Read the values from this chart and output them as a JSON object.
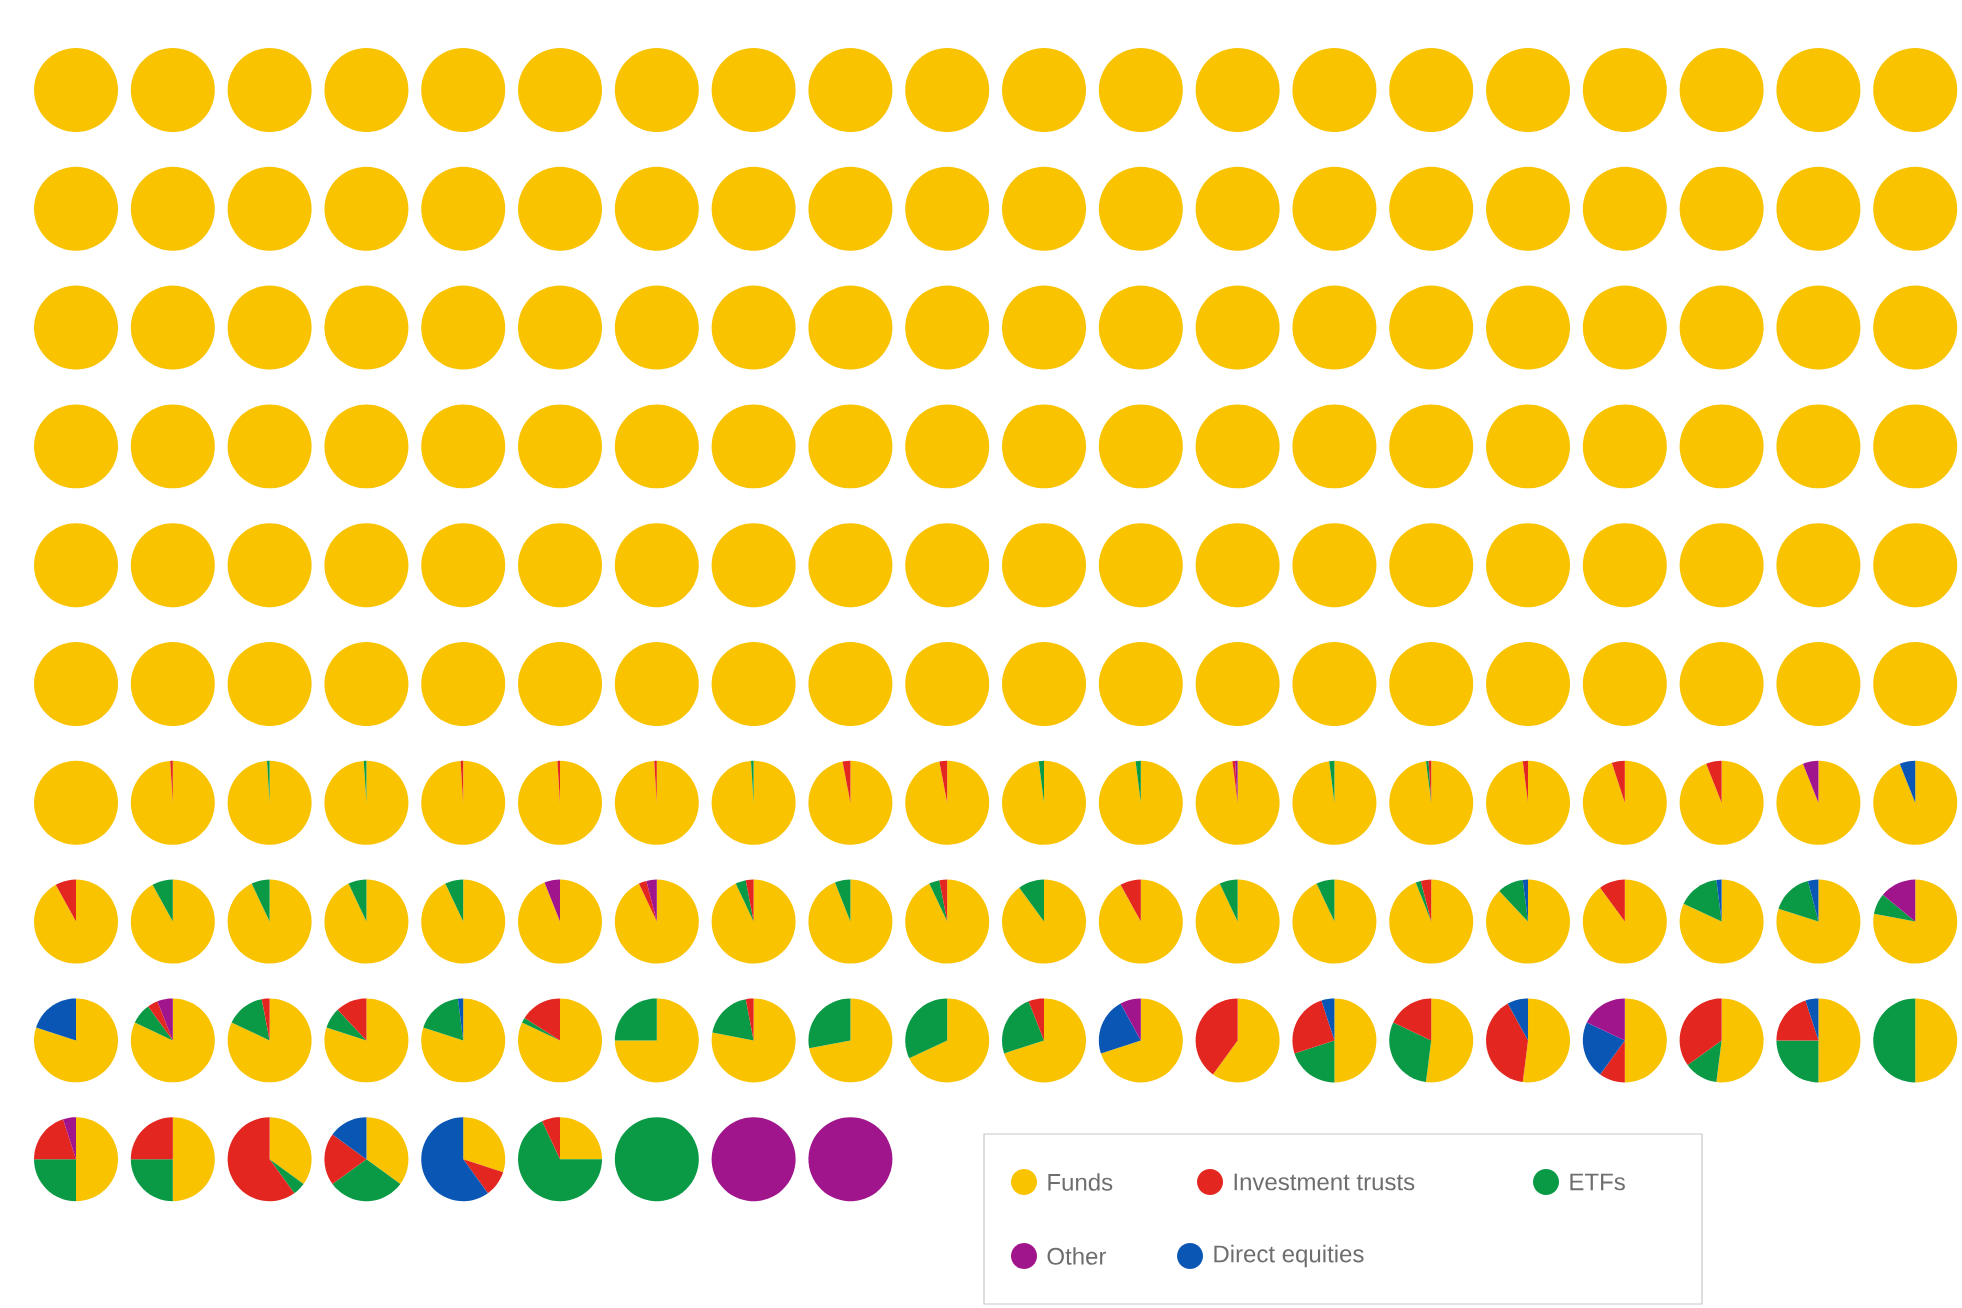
{
  "chart_data": {
    "type": "pie",
    "categories": [
      "Funds",
      "Investment trusts",
      "ETFs",
      "Other",
      "Direct equities"
    ],
    "colors": [
      "#f9c300",
      "#e3261f",
      "#0a9a46",
      "#a0148c",
      "#0a56b4"
    ],
    "legend": "bottom right",
    "series": [
      {
        "values": [
          100,
          0,
          0,
          0,
          0
        ]
      },
      {
        "values": [
          100,
          0,
          0,
          0,
          0
        ]
      },
      {
        "values": [
          100,
          0,
          0,
          0,
          0
        ]
      },
      {
        "values": [
          100,
          0,
          0,
          0,
          0
        ]
      },
      {
        "values": [
          100,
          0,
          0,
          0,
          0
        ]
      },
      {
        "values": [
          100,
          0,
          0,
          0,
          0
        ]
      },
      {
        "values": [
          100,
          0,
          0,
          0,
          0
        ]
      },
      {
        "values": [
          100,
          0,
          0,
          0,
          0
        ]
      },
      {
        "values": [
          100,
          0,
          0,
          0,
          0
        ]
      },
      {
        "values": [
          100,
          0,
          0,
          0,
          0
        ]
      },
      {
        "values": [
          100,
          0,
          0,
          0,
          0
        ]
      },
      {
        "values": [
          100,
          0,
          0,
          0,
          0
        ]
      },
      {
        "values": [
          100,
          0,
          0,
          0,
          0
        ]
      },
      {
        "values": [
          100,
          0,
          0,
          0,
          0
        ]
      },
      {
        "values": [
          100,
          0,
          0,
          0,
          0
        ]
      },
      {
        "values": [
          100,
          0,
          0,
          0,
          0
        ]
      },
      {
        "values": [
          100,
          0,
          0,
          0,
          0
        ]
      },
      {
        "values": [
          100,
          0,
          0,
          0,
          0
        ]
      },
      {
        "values": [
          100,
          0,
          0,
          0,
          0
        ]
      },
      {
        "values": [
          100,
          0,
          0,
          0,
          0
        ]
      },
      {
        "values": [
          100,
          0,
          0,
          0,
          0
        ]
      },
      {
        "values": [
          100,
          0,
          0,
          0,
          0
        ]
      },
      {
        "values": [
          100,
          0,
          0,
          0,
          0
        ]
      },
      {
        "values": [
          100,
          0,
          0,
          0,
          0
        ]
      },
      {
        "values": [
          100,
          0,
          0,
          0,
          0
        ]
      },
      {
        "values": [
          100,
          0,
          0,
          0,
          0
        ]
      },
      {
        "values": [
          100,
          0,
          0,
          0,
          0
        ]
      },
      {
        "values": [
          100,
          0,
          0,
          0,
          0
        ]
      },
      {
        "values": [
          100,
          0,
          0,
          0,
          0
        ]
      },
      {
        "values": [
          100,
          0,
          0,
          0,
          0
        ]
      },
      {
        "values": [
          100,
          0,
          0,
          0,
          0
        ]
      },
      {
        "values": [
          100,
          0,
          0,
          0,
          0
        ]
      },
      {
        "values": [
          100,
          0,
          0,
          0,
          0
        ]
      },
      {
        "values": [
          100,
          0,
          0,
          0,
          0
        ]
      },
      {
        "values": [
          100,
          0,
          0,
          0,
          0
        ]
      },
      {
        "values": [
          100,
          0,
          0,
          0,
          0
        ]
      },
      {
        "values": [
          100,
          0,
          0,
          0,
          0
        ]
      },
      {
        "values": [
          100,
          0,
          0,
          0,
          0
        ]
      },
      {
        "values": [
          100,
          0,
          0,
          0,
          0
        ]
      },
      {
        "values": [
          100,
          0,
          0,
          0,
          0
        ]
      },
      {
        "values": [
          100,
          0,
          0,
          0,
          0
        ]
      },
      {
        "values": [
          100,
          0,
          0,
          0,
          0
        ]
      },
      {
        "values": [
          100,
          0,
          0,
          0,
          0
        ]
      },
      {
        "values": [
          100,
          0,
          0,
          0,
          0
        ]
      },
      {
        "values": [
          100,
          0,
          0,
          0,
          0
        ]
      },
      {
        "values": [
          100,
          0,
          0,
          0,
          0
        ]
      },
      {
        "values": [
          100,
          0,
          0,
          0,
          0
        ]
      },
      {
        "values": [
          100,
          0,
          0,
          0,
          0
        ]
      },
      {
        "values": [
          100,
          0,
          0,
          0,
          0
        ]
      },
      {
        "values": [
          100,
          0,
          0,
          0,
          0
        ]
      },
      {
        "values": [
          100,
          0,
          0,
          0,
          0
        ]
      },
      {
        "values": [
          100,
          0,
          0,
          0,
          0
        ]
      },
      {
        "values": [
          100,
          0,
          0,
          0,
          0
        ]
      },
      {
        "values": [
          100,
          0,
          0,
          0,
          0
        ]
      },
      {
        "values": [
          100,
          0,
          0,
          0,
          0
        ]
      },
      {
        "values": [
          100,
          0,
          0,
          0,
          0
        ]
      },
      {
        "values": [
          100,
          0,
          0,
          0,
          0
        ]
      },
      {
        "values": [
          100,
          0,
          0,
          0,
          0
        ]
      },
      {
        "values": [
          100,
          0,
          0,
          0,
          0
        ]
      },
      {
        "values": [
          100,
          0,
          0,
          0,
          0
        ]
      },
      {
        "values": [
          100,
          0,
          0,
          0,
          0
        ]
      },
      {
        "values": [
          100,
          0,
          0,
          0,
          0
        ]
      },
      {
        "values": [
          100,
          0,
          0,
          0,
          0
        ]
      },
      {
        "values": [
          100,
          0,
          0,
          0,
          0
        ]
      },
      {
        "values": [
          100,
          0,
          0,
          0,
          0
        ]
      },
      {
        "values": [
          100,
          0,
          0,
          0,
          0
        ]
      },
      {
        "values": [
          100,
          0,
          0,
          0,
          0
        ]
      },
      {
        "values": [
          100,
          0,
          0,
          0,
          0
        ]
      },
      {
        "values": [
          100,
          0,
          0,
          0,
          0
        ]
      },
      {
        "values": [
          100,
          0,
          0,
          0,
          0
        ]
      },
      {
        "values": [
          100,
          0,
          0,
          0,
          0
        ]
      },
      {
        "values": [
          100,
          0,
          0,
          0,
          0
        ]
      },
      {
        "values": [
          100,
          0,
          0,
          0,
          0
        ]
      },
      {
        "values": [
          100,
          0,
          0,
          0,
          0
        ]
      },
      {
        "values": [
          100,
          0,
          0,
          0,
          0
        ]
      },
      {
        "values": [
          100,
          0,
          0,
          0,
          0
        ]
      },
      {
        "values": [
          100,
          0,
          0,
          0,
          0
        ]
      },
      {
        "values": [
          100,
          0,
          0,
          0,
          0
        ]
      },
      {
        "values": [
          100,
          0,
          0,
          0,
          0
        ]
      },
      {
        "values": [
          100,
          0,
          0,
          0,
          0
        ]
      },
      {
        "values": [
          100,
          0,
          0,
          0,
          0
        ]
      },
      {
        "values": [
          100,
          0,
          0,
          0,
          0
        ]
      },
      {
        "values": [
          100,
          0,
          0,
          0,
          0
        ]
      },
      {
        "values": [
          100,
          0,
          0,
          0,
          0
        ]
      },
      {
        "values": [
          100,
          0,
          0,
          0,
          0
        ]
      },
      {
        "values": [
          100,
          0,
          0,
          0,
          0
        ]
      },
      {
        "values": [
          100,
          0,
          0,
          0,
          0
        ]
      },
      {
        "values": [
          100,
          0,
          0,
          0,
          0
        ]
      },
      {
        "values": [
          100,
          0,
          0,
          0,
          0
        ]
      },
      {
        "values": [
          100,
          0,
          0,
          0,
          0
        ]
      },
      {
        "values": [
          100,
          0,
          0,
          0,
          0
        ]
      },
      {
        "values": [
          100,
          0,
          0,
          0,
          0
        ]
      },
      {
        "values": [
          100,
          0,
          0,
          0,
          0
        ]
      },
      {
        "values": [
          100,
          0,
          0,
          0,
          0
        ]
      },
      {
        "values": [
          100,
          0,
          0,
          0,
          0
        ]
      },
      {
        "values": [
          100,
          0,
          0,
          0,
          0
        ]
      },
      {
        "values": [
          100,
          0,
          0,
          0,
          0
        ]
      },
      {
        "values": [
          100,
          0,
          0,
          0,
          0
        ]
      },
      {
        "values": [
          100,
          0,
          0,
          0,
          0
        ]
      },
      {
        "values": [
          100,
          0,
          0,
          0,
          0
        ]
      },
      {
        "values": [
          100,
          0,
          0,
          0,
          0
        ]
      },
      {
        "values": [
          100,
          0,
          0,
          0,
          0
        ]
      },
      {
        "values": [
          100,
          0,
          0,
          0,
          0
        ]
      },
      {
        "values": [
          100,
          0,
          0,
          0,
          0
        ]
      },
      {
        "values": [
          100,
          0,
          0,
          0,
          0
        ]
      },
      {
        "values": [
          100,
          0,
          0,
          0,
          0
        ]
      },
      {
        "values": [
          100,
          0,
          0,
          0,
          0
        ]
      },
      {
        "values": [
          100,
          0,
          0,
          0,
          0
        ]
      },
      {
        "values": [
          100,
          0,
          0,
          0,
          0
        ]
      },
      {
        "values": [
          100,
          0,
          0,
          0,
          0
        ]
      },
      {
        "values": [
          100,
          0,
          0,
          0,
          0
        ]
      },
      {
        "values": [
          100,
          0,
          0,
          0,
          0
        ]
      },
      {
        "values": [
          100,
          0,
          0,
          0,
          0
        ]
      },
      {
        "values": [
          100,
          0,
          0,
          0,
          0
        ]
      },
      {
        "values": [
          100,
          0,
          0,
          0,
          0
        ]
      },
      {
        "values": [
          100,
          0,
          0,
          0,
          0
        ]
      },
      {
        "values": [
          100,
          0,
          0,
          0,
          0
        ]
      },
      {
        "values": [
          100,
          0,
          0,
          0,
          0
        ]
      },
      {
        "values": [
          100,
          0,
          0,
          0,
          0
        ]
      },
      {
        "values": [
          100,
          0,
          0,
          0,
          0
        ]
      },
      {
        "values": [
          100,
          0,
          0,
          0,
          0
        ]
      },
      {
        "values": [
          99,
          1,
          0,
          0,
          0
        ]
      },
      {
        "values": [
          99,
          0,
          1,
          0,
          0
        ]
      },
      {
        "values": [
          99,
          0,
          1,
          0,
          0
        ]
      },
      {
        "values": [
          99,
          1,
          0,
          0,
          0
        ]
      },
      {
        "values": [
          99,
          1,
          0,
          0,
          0
        ]
      },
      {
        "values": [
          99,
          1,
          0,
          0,
          0
        ]
      },
      {
        "values": [
          99,
          0,
          1,
          0,
          0
        ]
      },
      {
        "values": [
          97,
          3,
          0,
          0,
          0
        ]
      },
      {
        "values": [
          97,
          3,
          0,
          0,
          0
        ]
      },
      {
        "values": [
          98,
          0,
          2,
          0,
          0
        ]
      },
      {
        "values": [
          98,
          0,
          2,
          0,
          0
        ]
      },
      {
        "values": [
          98,
          1,
          0,
          1,
          0
        ]
      },
      {
        "values": [
          98,
          0,
          2,
          0,
          0
        ]
      },
      {
        "values": [
          98,
          1,
          1,
          0,
          0
        ]
      },
      {
        "values": [
          98,
          2,
          0,
          0,
          0
        ]
      },
      {
        "values": [
          95,
          5,
          0,
          0,
          0
        ]
      },
      {
        "values": [
          94,
          6,
          0,
          0,
          0
        ]
      },
      {
        "values": [
          94,
          0,
          0,
          6,
          0
        ]
      },
      {
        "values": [
          94,
          0,
          0,
          0,
          6
        ]
      },
      {
        "values": [
          92,
          8,
          0,
          0,
          0
        ]
      },
      {
        "values": [
          92,
          0,
          8,
          0,
          0
        ]
      },
      {
        "values": [
          93,
          0,
          7,
          0,
          0
        ]
      },
      {
        "values": [
          93,
          0,
          7,
          0,
          0
        ]
      },
      {
        "values": [
          93,
          0,
          7,
          0,
          0
        ]
      },
      {
        "values": [
          94,
          0,
          0,
          6,
          0
        ]
      },
      {
        "values": [
          93,
          3,
          0,
          4,
          0
        ]
      },
      {
        "values": [
          93,
          3,
          4,
          0,
          0
        ]
      },
      {
        "values": [
          94,
          0,
          6,
          0,
          0
        ]
      },
      {
        "values": [
          93,
          3,
          4,
          0,
          0
        ]
      },
      {
        "values": [
          90,
          0,
          10,
          0,
          0
        ]
      },
      {
        "values": [
          92,
          8,
          0,
          0,
          0
        ]
      },
      {
        "values": [
          93,
          0,
          7,
          0,
          0
        ]
      },
      {
        "values": [
          93,
          0,
          7,
          0,
          0
        ]
      },
      {
        "values": [
          94,
          4,
          2,
          0,
          0
        ]
      },
      {
        "values": [
          88,
          0,
          10,
          0,
          2
        ]
      },
      {
        "values": [
          90,
          10,
          0,
          0,
          0
        ]
      },
      {
        "values": [
          82,
          0,
          16,
          0,
          2
        ]
      },
      {
        "values": [
          80,
          0,
          16,
          0,
          4
        ]
      },
      {
        "values": [
          78,
          0,
          8,
          14,
          0
        ]
      },
      {
        "values": [
          80,
          0,
          0,
          0,
          20
        ]
      },
      {
        "values": [
          82,
          4,
          8,
          6,
          0
        ]
      },
      {
        "values": [
          82,
          3,
          15,
          0,
          0
        ]
      },
      {
        "values": [
          80,
          12,
          8,
          0,
          0
        ]
      },
      {
        "values": [
          80,
          0,
          18,
          0,
          2
        ]
      },
      {
        "values": [
          82,
          16,
          2,
          0,
          0
        ]
      },
      {
        "values": [
          75,
          0,
          25,
          0,
          0
        ]
      },
      {
        "values": [
          78,
          3,
          19,
          0,
          0
        ]
      },
      {
        "values": [
          72,
          0,
          28,
          0,
          0
        ]
      },
      {
        "values": [
          68,
          0,
          32,
          0,
          0
        ]
      },
      {
        "values": [
          70,
          6,
          24,
          0,
          0
        ]
      },
      {
        "values": [
          70,
          0,
          0,
          8,
          22
        ]
      },
      {
        "values": [
          60,
          40,
          0,
          0,
          0
        ]
      },
      {
        "values": [
          50,
          25,
          20,
          0,
          5
        ]
      },
      {
        "values": [
          52,
          18,
          30,
          0,
          0
        ]
      },
      {
        "values": [
          52,
          40,
          0,
          0,
          8
        ]
      },
      {
        "values": [
          50,
          10,
          0,
          18,
          22
        ]
      },
      {
        "values": [
          52,
          35,
          13,
          0,
          0
        ]
      },
      {
        "values": [
          50,
          20,
          25,
          0,
          5
        ]
      },
      {
        "values": [
          50,
          0,
          50,
          0,
          0
        ]
      },
      {
        "values": [
          50,
          20,
          25,
          5,
          0
        ]
      },
      {
        "values": [
          50,
          25,
          25,
          0,
          0
        ]
      },
      {
        "values": [
          35,
          60,
          5,
          0,
          0
        ]
      },
      {
        "values": [
          35,
          20,
          30,
          0,
          15
        ]
      },
      {
        "values": [
          30,
          10,
          0,
          0,
          60
        ]
      },
      {
        "values": [
          25,
          7,
          68,
          0,
          0
        ]
      },
      {
        "values": [
          0,
          0,
          100,
          0,
          0
        ]
      },
      {
        "values": [
          0,
          0,
          0,
          100,
          0
        ]
      },
      {
        "values": [
          0,
          0,
          0,
          100,
          0
        ]
      }
    ]
  }
}
